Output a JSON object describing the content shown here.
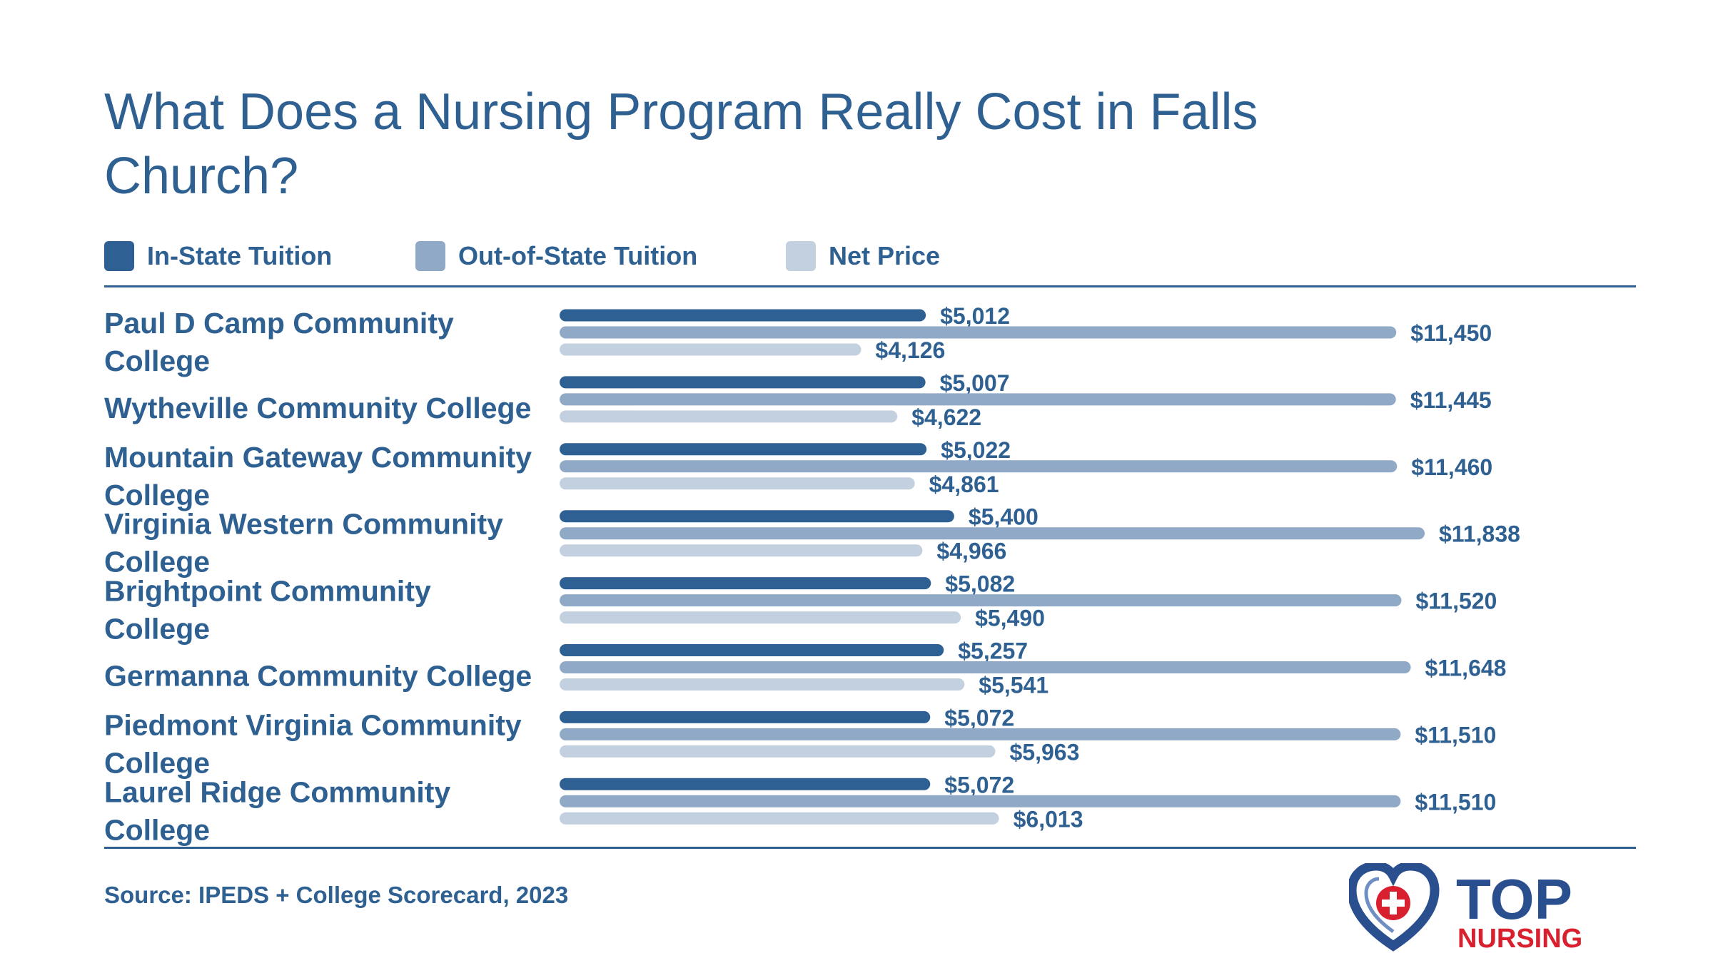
{
  "title": "What Does a Nursing Program Really Cost in Falls Church?",
  "legend": [
    {
      "label": "In-State Tuition",
      "color": "#2f6094"
    },
    {
      "label": "Out-of-State Tuition",
      "color": "#8fa9c6"
    },
    {
      "label": "Net Price",
      "color": "#c3d0df"
    }
  ],
  "chart_data": {
    "type": "bar",
    "orientation": "horizontal",
    "categories": [
      "Paul D Camp Community College",
      "Wytheville Community College",
      "Mountain Gateway Community College",
      "Virginia Western Community College",
      "Brightpoint Community College",
      "Germanna Community College",
      "Piedmont Virginia Community College",
      "Laurel Ridge Community College"
    ],
    "series": [
      {
        "name": "In-State Tuition",
        "values": [
          5012,
          5007,
          5022,
          5400,
          5082,
          5257,
          5072,
          5072
        ],
        "labels": [
          "$5,012",
          "$5,007",
          "$5,022",
          "$5,400",
          "$5,082",
          "$5,257",
          "$5,072",
          "$5,072"
        ]
      },
      {
        "name": "Out-of-State Tuition",
        "values": [
          11450,
          11445,
          11460,
          11838,
          11520,
          11648,
          11510,
          11510
        ],
        "labels": [
          "$11,450",
          "$11,445",
          "$11,460",
          "$11,838",
          "$11,520",
          "$11,648",
          "$11,510",
          "$11,510"
        ]
      },
      {
        "name": "Net Price",
        "values": [
          4126,
          4622,
          4861,
          4966,
          5490,
          5541,
          5963,
          6013
        ],
        "labels": [
          "$4,126",
          "$4,622",
          "$4,861",
          "$4,966",
          "$5,490",
          "$5,541",
          "$5,963",
          "$6,013"
        ]
      }
    ],
    "xlim": [
      0,
      11838
    ],
    "grid": false,
    "legend_position": "top-left"
  },
  "source": "Source: IPEDS + College Scorecard, 2023",
  "logo": {
    "top": "TOP",
    "bottom": "NURSING",
    "heart_color": "#2a4f8f",
    "cross_color": "#d8202e"
  }
}
